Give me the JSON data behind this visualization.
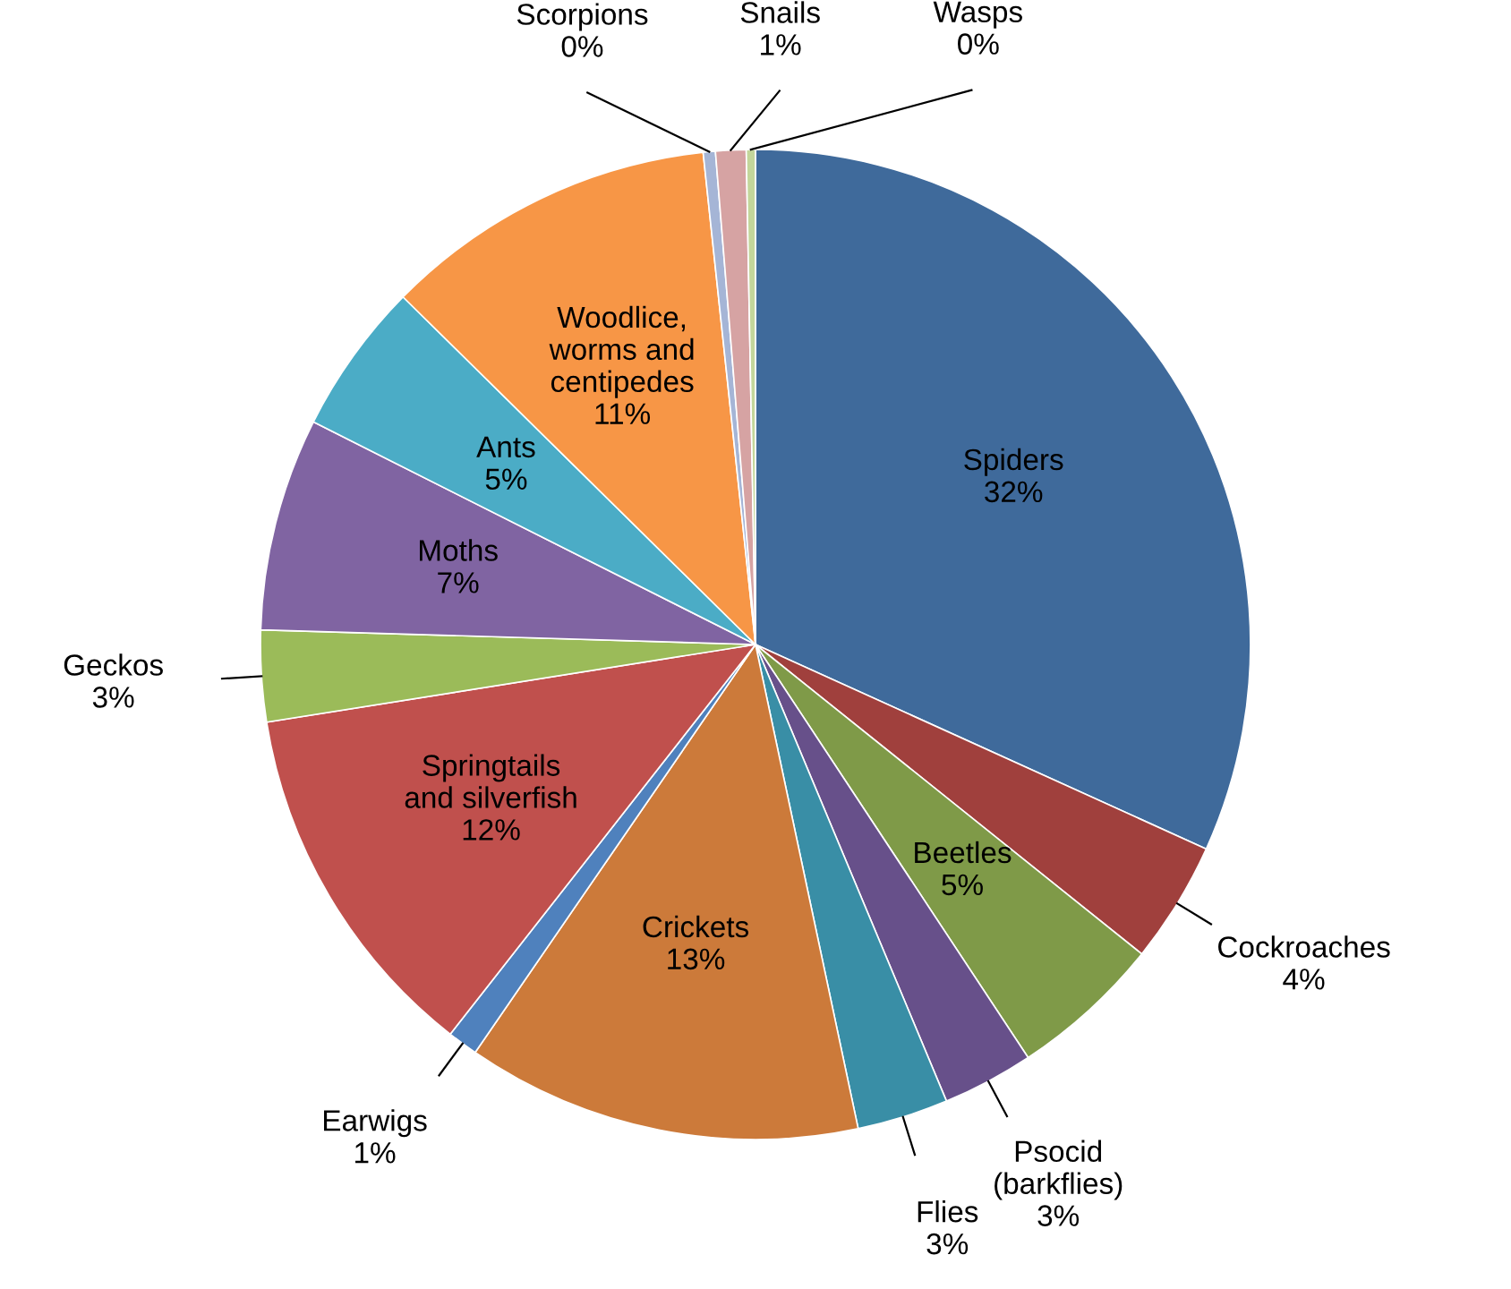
{
  "chart_data": {
    "type": "pie",
    "categories": [
      "Spiders",
      "Cockroaches",
      "Beetles",
      "Psocid (barkflies)",
      "Flies",
      "Crickets",
      "Earwigs",
      "Springtails and silverfish",
      "Geckos",
      "Moths",
      "Ants",
      "Woodlice, worms and centipedes",
      "Scorpions",
      "Snails",
      "Wasps"
    ],
    "values": [
      32,
      4,
      5,
      3,
      3,
      13,
      1,
      12,
      3,
      7,
      5,
      11,
      0.4,
      1,
      0.3
    ],
    "value_labels": [
      "32%",
      "4%",
      "5%",
      "3%",
      "3%",
      "13%",
      "1%",
      "12%",
      "3%",
      "7%",
      "5%",
      "11%",
      "0%",
      "1%",
      "0%"
    ],
    "colors": [
      "#3f6a9b",
      "#a0403d",
      "#7f9a48",
      "#67508a",
      "#398ea6",
      "#cc7a3a",
      "#4f81bd",
      "#c0504d",
      "#9bbb59",
      "#8064a2",
      "#4bacc6",
      "#f79646",
      "#a5b5d6",
      "#d6a3a3",
      "#c3d69b"
    ],
    "legend": false
  }
}
